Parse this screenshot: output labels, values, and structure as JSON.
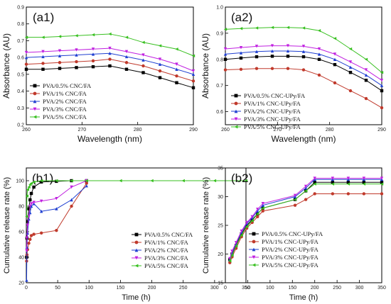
{
  "chart_data": [
    {
      "panel": "(a1)",
      "type": "line",
      "xlabel": "Wavelength (nm)",
      "ylabel": "Absorbance (AU)",
      "xlim": [
        260,
        290
      ],
      "ylim": [
        0.2,
        0.9
      ],
      "xticks": [
        "260",
        "270",
        "280",
        "290"
      ],
      "yticks": [
        "0.2",
        "0.3",
        "0.4",
        "0.5",
        "0.6",
        "0.7",
        "0.8",
        "0.9"
      ],
      "legend_position": "bottom-left",
      "series": [
        {
          "name": "PVA/0.5% CNC/FA",
          "color": "#000000",
          "marker": "square",
          "x": [
            260,
            263,
            266,
            269,
            272,
            275,
            278,
            281,
            284,
            287,
            290
          ],
          "y": [
            0.53,
            0.53,
            0.535,
            0.54,
            0.545,
            0.55,
            0.53,
            0.51,
            0.48,
            0.45,
            0.42
          ]
        },
        {
          "name": "PVA/1% CNC/FA",
          "color": "#c0392b",
          "marker": "circle",
          "x": [
            260,
            263,
            266,
            269,
            272,
            275,
            278,
            281,
            284,
            287,
            290
          ],
          "y": [
            0.56,
            0.565,
            0.57,
            0.575,
            0.58,
            0.59,
            0.57,
            0.55,
            0.52,
            0.49,
            0.46
          ]
        },
        {
          "name": "PVA/2% CNC/FA",
          "color": "#1f3fd1",
          "marker": "triangle-up",
          "x": [
            260,
            263,
            266,
            269,
            272,
            275,
            278,
            281,
            284,
            287,
            290
          ],
          "y": [
            0.6,
            0.605,
            0.61,
            0.615,
            0.62,
            0.625,
            0.605,
            0.585,
            0.56,
            0.53,
            0.5
          ]
        },
        {
          "name": "PVA/3% CNC/FA",
          "color": "#c020e0",
          "marker": "triangle-down",
          "x": [
            260,
            263,
            266,
            269,
            272,
            275,
            278,
            281,
            284,
            287,
            290
          ],
          "y": [
            0.63,
            0.635,
            0.64,
            0.645,
            0.65,
            0.655,
            0.635,
            0.615,
            0.59,
            0.56,
            0.52
          ]
        },
        {
          "name": "PVA/5% CNC/FA",
          "color": "#38c020",
          "marker": "triangle-left",
          "x": [
            260,
            263,
            266,
            269,
            272,
            275,
            278,
            281,
            284,
            287,
            290
          ],
          "y": [
            0.72,
            0.72,
            0.725,
            0.73,
            0.735,
            0.74,
            0.72,
            0.69,
            0.67,
            0.65,
            0.61
          ]
        }
      ]
    },
    {
      "panel": "(a2)",
      "type": "line",
      "xlabel": "Wavelength (nm)",
      "ylabel": "Absorbance (AU)",
      "xlim": [
        260,
        290
      ],
      "ylim": [
        0.55,
        1.0
      ],
      "xticks": [
        "260",
        "270",
        "280",
        "290"
      ],
      "yticks": [
        "0.6",
        "0.7",
        "0.8",
        "0.9",
        "1.0"
      ],
      "legend_position": "bottom-left",
      "series": [
        {
          "name": "PVA/0.5% CNC-UPy/FA",
          "color": "#000000",
          "marker": "square",
          "x": [
            260,
            263,
            266,
            269,
            272,
            275,
            278,
            281,
            284,
            287,
            290
          ],
          "y": [
            0.8,
            0.805,
            0.81,
            0.812,
            0.812,
            0.81,
            0.8,
            0.78,
            0.75,
            0.72,
            0.68
          ]
        },
        {
          "name": "PVA/1% CNC-UPy/FA",
          "color": "#c0392b",
          "marker": "circle",
          "x": [
            260,
            263,
            266,
            269,
            272,
            275,
            278,
            281,
            284,
            287,
            290
          ],
          "y": [
            0.76,
            0.762,
            0.765,
            0.765,
            0.765,
            0.76,
            0.74,
            0.71,
            0.68,
            0.65,
            0.615
          ]
        },
        {
          "name": "PVA/2% CNC-UPy/FA",
          "color": "#1f3fd1",
          "marker": "triangle-up",
          "x": [
            260,
            263,
            266,
            269,
            272,
            275,
            278,
            281,
            284,
            287,
            290
          ],
          "y": [
            0.82,
            0.825,
            0.83,
            0.832,
            0.832,
            0.83,
            0.82,
            0.8,
            0.77,
            0.74,
            0.7
          ]
        },
        {
          "name": "PVA/3% CNC-UPy/FA",
          "color": "#c020e0",
          "marker": "triangle-down",
          "x": [
            260,
            263,
            266,
            269,
            272,
            275,
            278,
            281,
            284,
            287,
            290
          ],
          "y": [
            0.84,
            0.845,
            0.85,
            0.852,
            0.852,
            0.85,
            0.84,
            0.82,
            0.79,
            0.76,
            0.72
          ]
        },
        {
          "name": "PVA/5% CNC-UPy/FA",
          "color": "#38c020",
          "marker": "triangle-left",
          "x": [
            260,
            263,
            266,
            269,
            272,
            275,
            278,
            281,
            284,
            287,
            290
          ],
          "y": [
            0.915,
            0.918,
            0.92,
            0.922,
            0.922,
            0.92,
            0.91,
            0.88,
            0.84,
            0.8,
            0.75
          ]
        }
      ]
    },
    {
      "panel": "(b1)",
      "type": "line",
      "xlabel": "Time (h)",
      "ylabel": "Cumulative release rate (%)",
      "xlim": [
        0,
        350
      ],
      "ylim": [
        20,
        110
      ],
      "xticks": [
        "0",
        "50",
        "100",
        "150",
        "200",
        "250",
        "300",
        "350"
      ],
      "yticks": [
        "20",
        "40",
        "60",
        "80",
        "100"
      ],
      "legend_position": "bottom-right",
      "series": [
        {
          "name": "PVA/0.5% CNC/FA",
          "color": "#000000",
          "marker": "square",
          "x": [
            0.5,
            1,
            2,
            4,
            6,
            8,
            12,
            24,
            48,
            72,
            96
          ],
          "y": [
            40,
            55,
            68,
            78,
            85,
            90,
            95,
            99,
            99.5,
            100,
            100
          ]
        },
        {
          "name": "PVA/1% CNC/FA",
          "color": "#c0392b",
          "marker": "circle",
          "x": [
            0.5,
            1,
            2,
            4,
            6,
            8,
            12,
            24,
            48,
            72,
            96
          ],
          "y": [
            37,
            42,
            46,
            51,
            54,
            57,
            58,
            59,
            61,
            80,
            98
          ]
        },
        {
          "name": "PVA/2% CNC/FA",
          "color": "#1f3fd1",
          "marker": "triangle-up",
          "x": [
            0.5,
            1,
            2,
            4,
            6,
            8,
            12,
            24,
            48,
            72,
            96
          ],
          "y": [
            22,
            48,
            59,
            70,
            75,
            80,
            82,
            76,
            78,
            85,
            96
          ]
        },
        {
          "name": "PVA/3% CNC/FA",
          "color": "#c020e0",
          "marker": "triangle-down",
          "x": [
            0.5,
            1,
            2,
            4,
            6,
            8,
            12,
            24,
            48,
            72,
            96
          ],
          "y": [
            45,
            55,
            65,
            72,
            80,
            82,
            83,
            84,
            86,
            95,
            100
          ]
        },
        {
          "name": "PVA/5% CNC/FA",
          "color": "#38c020",
          "marker": "triangle-left",
          "x": [
            0.5,
            1,
            2,
            4,
            6,
            8,
            12,
            24,
            48,
            72,
            96,
            150,
            200,
            250,
            300,
            350
          ],
          "y": [
            72,
            88,
            93,
            95,
            97,
            98,
            99,
            100,
            100,
            100,
            100,
            100,
            100,
            100,
            100,
            100
          ]
        }
      ]
    },
    {
      "panel": "(b2)",
      "type": "line",
      "xlabel": "Time (h)",
      "ylabel": "Cumulative release rate (%)",
      "xlim": [
        0,
        350
      ],
      "ylim": [
        15,
        35
      ],
      "xticks": [
        "0",
        "50",
        "100",
        "150",
        "200",
        "250",
        "300",
        "350"
      ],
      "yticks": [
        "15",
        "20",
        "25",
        "30",
        "35"
      ],
      "legend_position": "bottom-right",
      "series": [
        {
          "name": "PVA/0.5% CNC-UPy/FA",
          "color": "#000000",
          "marker": "square",
          "x": [
            10,
            15,
            24,
            36,
            48,
            60,
            72,
            84,
            156,
            180,
            200,
            240,
            275,
            310,
            350
          ],
          "y": [
            19,
            20,
            21.5,
            23.5,
            25,
            26,
            27,
            28,
            29.5,
            31,
            32.5,
            32.5,
            32.5,
            32.5,
            32.5
          ]
        },
        {
          "name": "PVA/1% CNC-UPy/FA",
          "color": "#c0392b",
          "marker": "circle",
          "x": [
            10,
            15,
            24,
            36,
            48,
            60,
            72,
            84,
            156,
            180,
            200,
            240,
            275,
            310,
            350
          ],
          "y": [
            18.5,
            19.5,
            21,
            23,
            24.5,
            25.5,
            26.5,
            27.5,
            28.5,
            29.5,
            30.5,
            30.5,
            30.5,
            30.5,
            30.5
          ]
        },
        {
          "name": "PVA/2% CNC-UPy/FA",
          "color": "#1f3fd1",
          "marker": "triangle-up",
          "x": [
            10,
            15,
            24,
            36,
            48,
            60,
            72,
            84,
            156,
            180,
            200,
            240,
            275,
            310,
            350
          ],
          "y": [
            19,
            20.2,
            21.8,
            23.8,
            25.3,
            26.3,
            27.5,
            28.5,
            30,
            31.5,
            33,
            33,
            33,
            33,
            33
          ]
        },
        {
          "name": "PVA/3% CNC-UPy/FA",
          "color": "#c020e0",
          "marker": "triangle-down",
          "x": [
            10,
            15,
            24,
            36,
            48,
            60,
            72,
            84,
            156,
            180,
            200,
            240,
            275,
            310,
            350
          ],
          "y": [
            19.2,
            20.5,
            22,
            24,
            25.5,
            26.5,
            27.8,
            28.8,
            30.2,
            31.8,
            33.2,
            33.2,
            33.2,
            33.2,
            33.2
          ]
        },
        {
          "name": "PVA/5% CNC-UPy/FA",
          "color": "#38c020",
          "marker": "triangle-left",
          "x": [
            10,
            15,
            24,
            36,
            48,
            60,
            72,
            84,
            156,
            180,
            200,
            240,
            275,
            310,
            350
          ],
          "y": [
            18.8,
            19.8,
            21.4,
            23.3,
            24.8,
            25.8,
            27,
            28,
            29.5,
            31,
            32.2,
            32.2,
            32.2,
            32.2,
            32.2
          ]
        }
      ]
    }
  ]
}
